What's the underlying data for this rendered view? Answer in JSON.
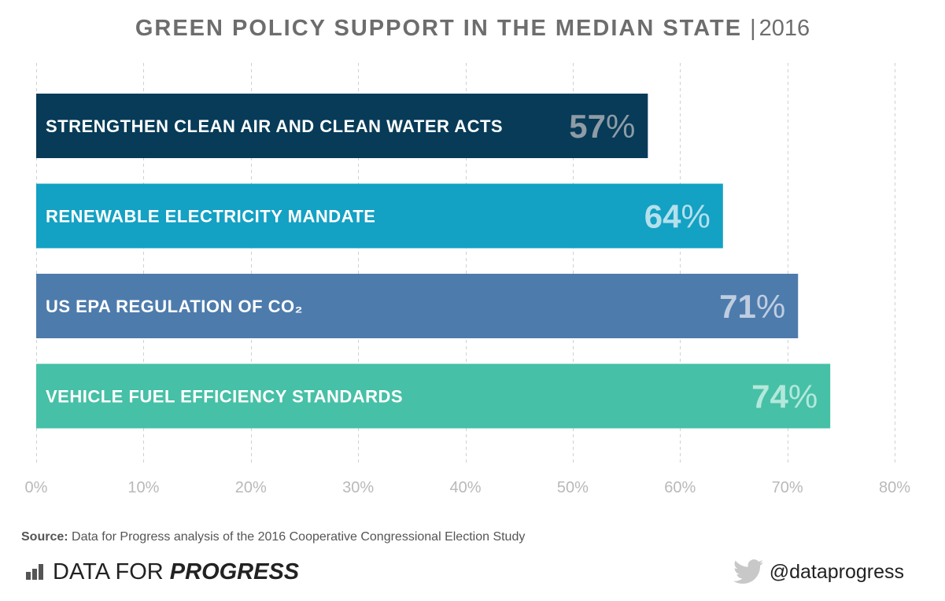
{
  "header": {
    "title": "GREEN POLICY SUPPORT IN THE MEDIAN STATE",
    "separator": "|",
    "year": "2016"
  },
  "chart_data": {
    "type": "bar",
    "orientation": "horizontal",
    "title": "GREEN POLICY SUPPORT IN THE MEDIAN STATE | 2016",
    "categories": [
      "STRENGTHEN CLEAN AIR AND CLEAN WATER ACTS",
      "RENEWABLE ELECTRICITY MANDATE",
      "US EPA REGULATION OF CO₂",
      "VEHICLE FUEL EFFICIENCY STANDARDS"
    ],
    "values": [
      57,
      64,
      71,
      74
    ],
    "value_labels": [
      "57",
      "64",
      "71",
      "74"
    ],
    "value_suffix": "%",
    "bar_colors": [
      "#073b58",
      "#13a1c4",
      "#4d7bac",
      "#46c0a6"
    ],
    "value_colors": [
      "#8f9ba5",
      "#b4e0ec",
      "#bfcde0",
      "#b4e8dc"
    ],
    "xlim": [
      0,
      80
    ],
    "xticks": [
      0,
      10,
      20,
      30,
      40,
      50,
      60,
      70,
      80
    ],
    "xtick_labels": [
      "0%",
      "10%",
      "20%",
      "30%",
      "40%",
      "50%",
      "60%",
      "70%",
      "80%"
    ],
    "xlabel": "",
    "ylabel": "",
    "grid": true,
    "legend": "none"
  },
  "footer": {
    "source_label": "Source:",
    "source_text": "Data for Progress analysis of the 2016 Cooperative Congressional Election Study",
    "brand_regular": "DATA FOR ",
    "brand_bold": "PROGRESS",
    "handle": "@dataprogress",
    "brand_icon": "bar-chart-logo-icon",
    "handle_icon": "twitter-bird-icon"
  }
}
